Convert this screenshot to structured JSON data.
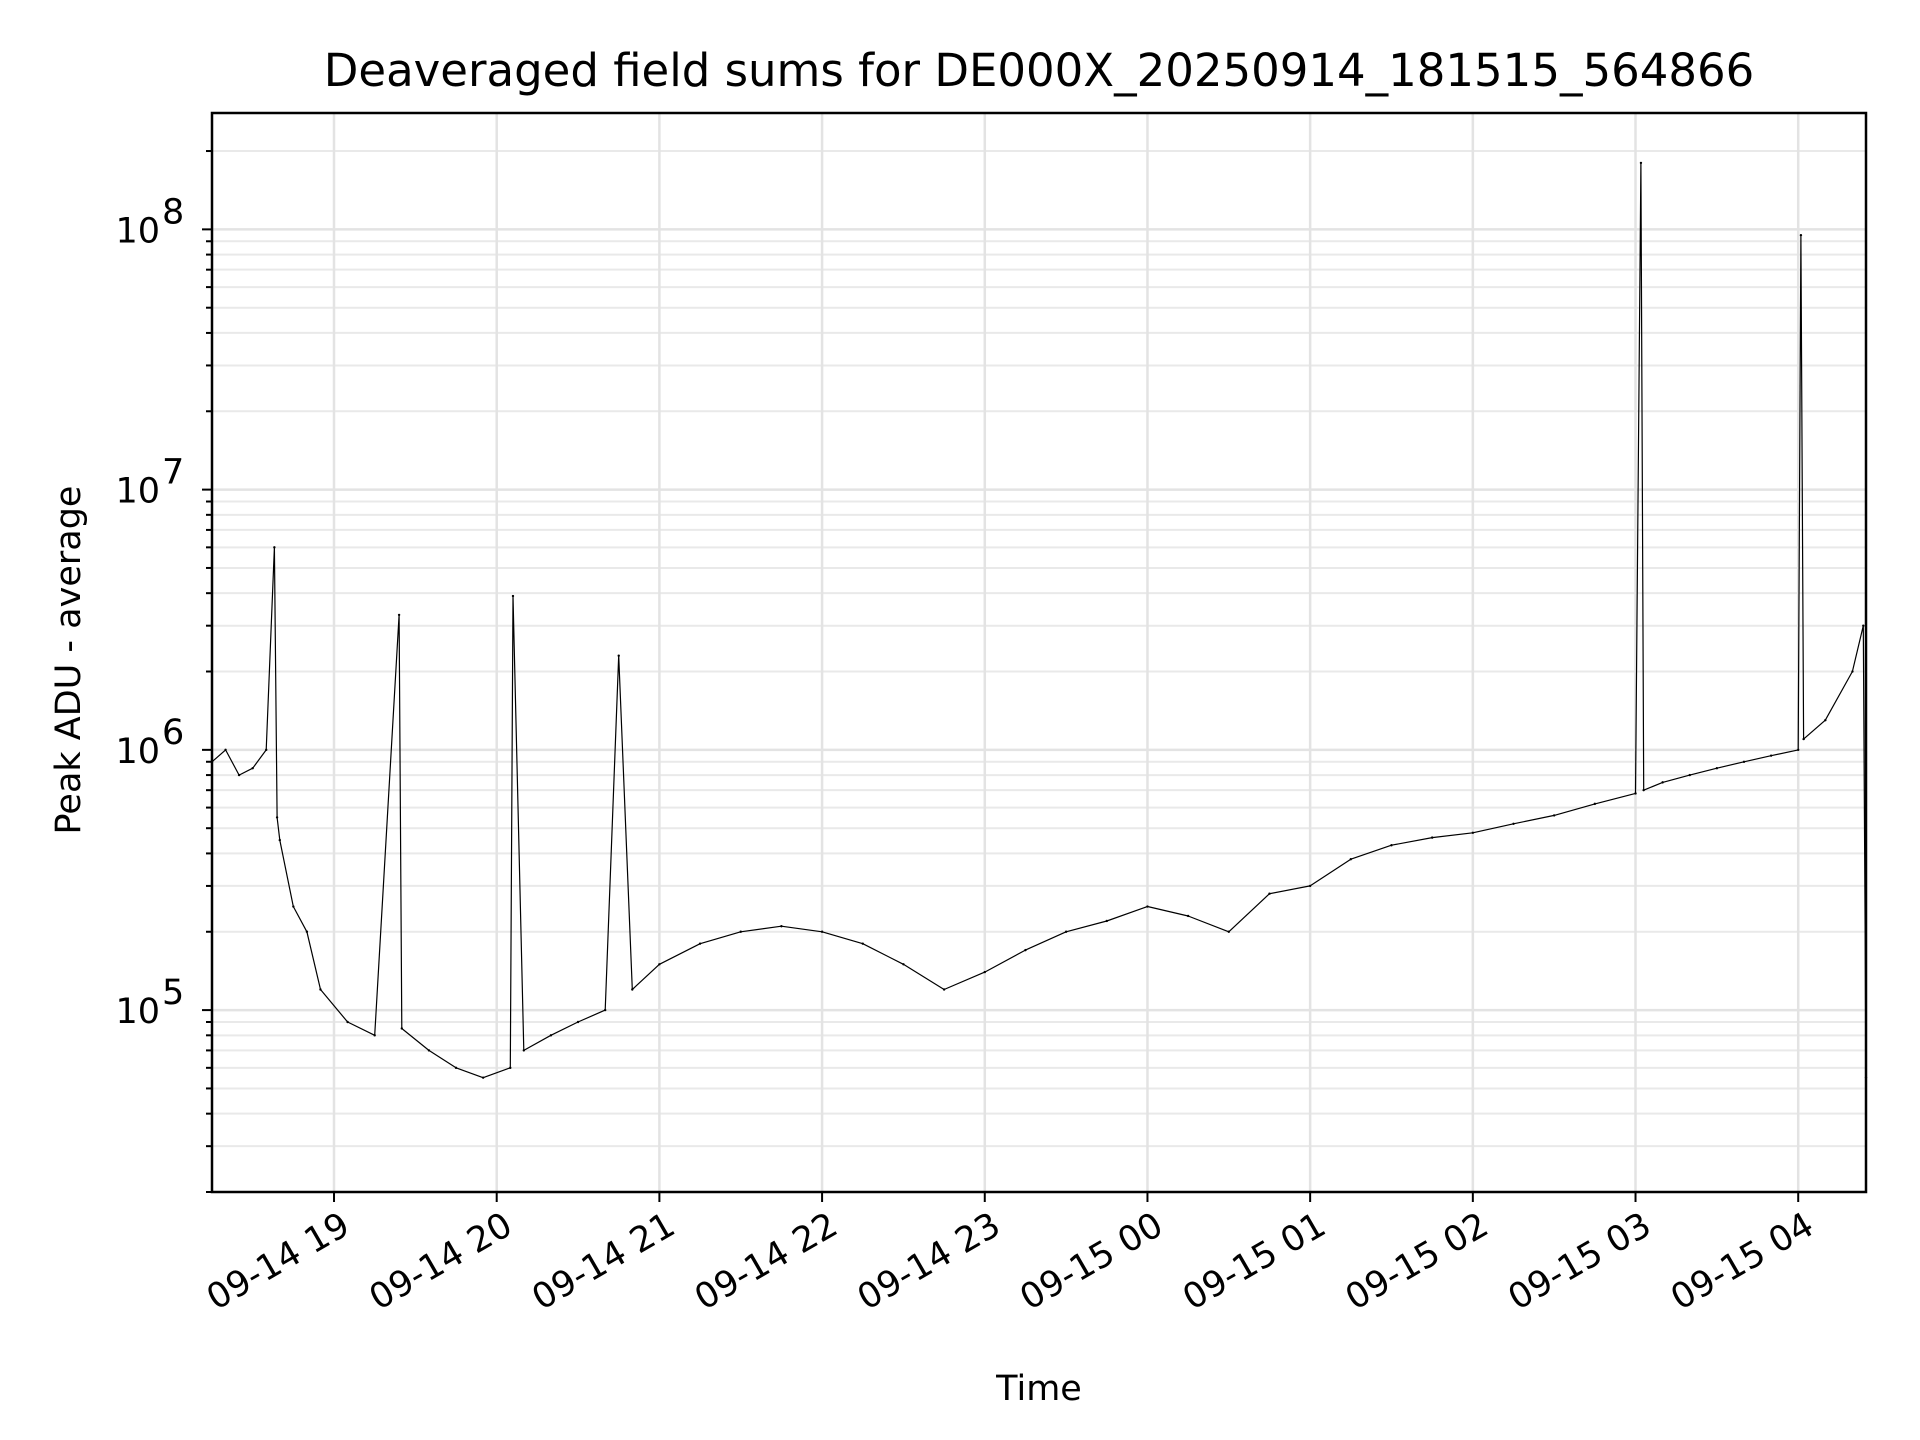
{
  "chart_data": {
    "type": "line",
    "title": "Deaveraged field sums for DE000X_20250914_181515_564866",
    "xlabel": "Time",
    "ylabel": "Peak ADU - average",
    "yscale": "log",
    "ylim": [
      20000,
      280000000
    ],
    "xlim": [
      "2025-09-14 18:15",
      "2025-09-15 04:25"
    ],
    "grid": true,
    "legend": "none",
    "line_color": "#000000",
    "x_tick_labels": [
      "09-14 19",
      "09-14 20",
      "09-14 21",
      "09-14 22",
      "09-14 23",
      "09-15 00",
      "09-15 01",
      "09-15 02",
      "09-15 03",
      "09-15 04"
    ],
    "x_tick_values": [
      "2025-09-14 19:00",
      "2025-09-14 20:00",
      "2025-09-14 21:00",
      "2025-09-14 22:00",
      "2025-09-14 23:00",
      "2025-09-15 00:00",
      "2025-09-15 01:00",
      "2025-09-15 02:00",
      "2025-09-15 03:00",
      "2025-09-15 04:00"
    ],
    "y_ticks": [
      {
        "value": 100000,
        "base": "10",
        "exp": "5"
      },
      {
        "value": 1000000,
        "base": "10",
        "exp": "6"
      },
      {
        "value": 10000000,
        "base": "10",
        "exp": "7"
      },
      {
        "value": 100000000,
        "base": "10",
        "exp": "8"
      }
    ],
    "series": [
      {
        "x": [
          "2025-09-14 18:15",
          "2025-09-14 18:20",
          "2025-09-14 18:25",
          "2025-09-14 18:30",
          "2025-09-14 18:35",
          "2025-09-14 18:38",
          "2025-09-14 18:39",
          "2025-09-14 18:40",
          "2025-09-14 18:45",
          "2025-09-14 18:50",
          "2025-09-14 18:55",
          "2025-09-14 19:05",
          "2025-09-14 19:15",
          "2025-09-14 19:24",
          "2025-09-14 19:25",
          "2025-09-14 19:35",
          "2025-09-14 19:45",
          "2025-09-14 19:55",
          "2025-09-14 20:05",
          "2025-09-14 20:06",
          "2025-09-14 20:10",
          "2025-09-14 20:20",
          "2025-09-14 20:30",
          "2025-09-14 20:40",
          "2025-09-14 20:45",
          "2025-09-14 20:50",
          "2025-09-14 21:00",
          "2025-09-14 21:15",
          "2025-09-14 21:30",
          "2025-09-14 21:45",
          "2025-09-14 22:00",
          "2025-09-14 22:15",
          "2025-09-14 22:30",
          "2025-09-14 22:45",
          "2025-09-14 23:00",
          "2025-09-14 23:15",
          "2025-09-14 23:30",
          "2025-09-14 23:45",
          "2025-09-15 00:00",
          "2025-09-15 00:15",
          "2025-09-15 00:30",
          "2025-09-15 00:45",
          "2025-09-15 01:00",
          "2025-09-15 01:15",
          "2025-09-15 01:30",
          "2025-09-15 01:45",
          "2025-09-15 02:00",
          "2025-09-15 02:15",
          "2025-09-15 02:30",
          "2025-09-15 02:45",
          "2025-09-15 03:00",
          "2025-09-15 03:02",
          "2025-09-15 03:03",
          "2025-09-15 03:10",
          "2025-09-15 03:20",
          "2025-09-15 03:30",
          "2025-09-15 03:40",
          "2025-09-15 03:50",
          "2025-09-15 04:00",
          "2025-09-15 04:01",
          "2025-09-15 04:02",
          "2025-09-15 04:10",
          "2025-09-15 04:20",
          "2025-09-15 04:24",
          "2025-09-15 04:25"
        ],
        "y": [
          900000,
          1000000,
          800000,
          850000,
          1000000,
          6000000,
          550000,
          450000,
          250000,
          200000,
          120000,
          90000,
          80000,
          3300000,
          85000,
          70000,
          60000,
          55000,
          60000,
          3900000,
          70000,
          80000,
          90000,
          100000,
          2300000,
          120000,
          150000,
          180000,
          200000,
          210000,
          200000,
          180000,
          150000,
          120000,
          140000,
          170000,
          200000,
          220000,
          250000,
          230000,
          200000,
          280000,
          300000,
          380000,
          430000,
          460000,
          480000,
          520000,
          560000,
          620000,
          680000,
          180000000,
          700000,
          750000,
          800000,
          850000,
          900000,
          950000,
          1000000,
          95000000,
          1100000,
          1300000,
          2000000,
          3000000,
          55000
        ]
      }
    ]
  }
}
